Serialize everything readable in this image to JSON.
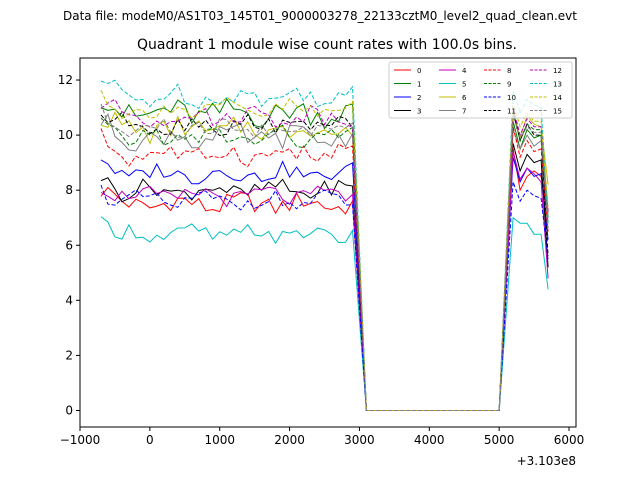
{
  "chart_data": {
    "type": "line",
    "suptitle": "Data file: modeM0/AS1T03_145T01_9000003278_22133cztM0_level2_quad_clean.evt",
    "title": "Quadrant 1 module wise count rates with 100.0s bins.",
    "xlabel": "",
    "ylabel": "",
    "x_offset_label": "+3.103e8",
    "xlim": [
      -1000,
      6100
    ],
    "ylim": [
      -0.6,
      12.8
    ],
    "x_ticks": [
      -1000,
      0,
      1000,
      2000,
      3000,
      4000,
      5000,
      6000
    ],
    "x_tick_labels": [
      "−1000",
      "0",
      "1000",
      "2000",
      "3000",
      "4000",
      "5000",
      "6000"
    ],
    "y_ticks": [
      0,
      2,
      4,
      6,
      8,
      10,
      12
    ],
    "y_tick_labels": [
      "0",
      "2",
      "4",
      "6",
      "8",
      "10",
      "12"
    ],
    "grid": false,
    "legend_placement": "top-right",
    "legend_columns": 4,
    "series": [
      {
        "name": "0",
        "color": "#ff0000",
        "dash": "solid",
        "base": 7.5,
        "amp": 0.35,
        "seg2": [
          9.5,
          8.0,
          8.5,
          8.7,
          8.5,
          7.0
        ]
      },
      {
        "name": "1",
        "color": "#008000",
        "dash": "solid",
        "base": 10.8,
        "amp": 0.45,
        "seg2": [
          10.5,
          9.5,
          10.2,
          9.9,
          10.0,
          7.0
        ]
      },
      {
        "name": "2",
        "color": "#0000ff",
        "dash": "solid",
        "base": 8.6,
        "amp": 0.3,
        "seg2": [
          9.2,
          8.3,
          8.8,
          8.5,
          8.6,
          6.2
        ]
      },
      {
        "name": "3",
        "color": "#000000",
        "dash": "solid",
        "base": 8.0,
        "amp": 0.3,
        "seg2": [
          9.7,
          8.7,
          9.3,
          9.0,
          9.1,
          5.2
        ]
      },
      {
        "name": "4",
        "color": "#bf00bf",
        "dash": "solid",
        "base": 7.8,
        "amp": 0.3,
        "seg2": [
          9.4,
          8.4,
          8.8,
          8.6,
          8.3,
          4.8
        ]
      },
      {
        "name": "5",
        "color": "#00bfbf",
        "dash": "solid",
        "base": 6.4,
        "amp": 0.3,
        "seg2": [
          7.0,
          6.8,
          6.8,
          6.4,
          6.4,
          4.4
        ]
      },
      {
        "name": "6",
        "color": "#bfbf00",
        "dash": "solid",
        "base": 10.2,
        "amp": 0.4,
        "seg2": [
          10.9,
          9.9,
          10.7,
          10.4,
          10.3,
          8.2
        ]
      },
      {
        "name": "7",
        "color": "#808080",
        "dash": "solid",
        "base": 9.9,
        "amp": 0.4,
        "seg2": [
          10.2,
          9.5,
          10.0,
          9.6,
          9.8,
          6.8
        ]
      },
      {
        "name": "8",
        "color": "#ff0000",
        "dash": "dashed",
        "base": 9.3,
        "amp": 0.35,
        "seg2": [
          10.3,
          9.2,
          9.8,
          9.4,
          9.5,
          6.5
        ]
      },
      {
        "name": "9",
        "color": "#008000",
        "dash": "dashed",
        "base": 9.9,
        "amp": 0.35,
        "seg2": [
          10.8,
          9.8,
          10.4,
          10.2,
          10.2,
          7.2
        ]
      },
      {
        "name": "10",
        "color": "#0000ff",
        "dash": "dashed",
        "base": 7.6,
        "amp": 0.3,
        "seg2": [
          8.3,
          7.6,
          8.0,
          7.8,
          7.7,
          5.5
        ]
      },
      {
        "name": "11",
        "color": "#000000",
        "dash": "dashed",
        "base": 10.4,
        "amp": 0.35,
        "seg2": [
          10.9,
          9.8,
          10.4,
          10.0,
          10.0,
          5.6
        ]
      },
      {
        "name": "12",
        "color": "#bf00bf",
        "dash": "dashed",
        "base": 10.7,
        "amp": 0.35,
        "seg2": [
          11.0,
          10.0,
          10.6,
          10.3,
          10.3,
          7.2
        ]
      },
      {
        "name": "13",
        "color": "#00bfbf",
        "dash": "dashed",
        "base": 11.4,
        "amp": 0.35,
        "seg2": [
          11.6,
          10.8,
          11.3,
          11.1,
          11.0,
          6.8
        ]
      },
      {
        "name": "14",
        "color": "#bfbf00",
        "dash": "dashed",
        "base": 10.9,
        "amp": 0.35,
        "seg2": [
          11.2,
          10.3,
          10.8,
          10.5,
          10.5,
          7.4
        ]
      },
      {
        "name": "15",
        "color": "#808080",
        "dash": "dashed",
        "base": 10.2,
        "amp": 0.35,
        "seg2": [
          10.7,
          9.9,
          10.3,
          10.1,
          10.1,
          6.6
        ]
      }
    ],
    "segment1_x": [
      -700,
      2900
    ],
    "gap_x": [
      3100,
      5000
    ],
    "segment2_x": [
      5200,
      5700
    ],
    "bin_width": 100
  }
}
